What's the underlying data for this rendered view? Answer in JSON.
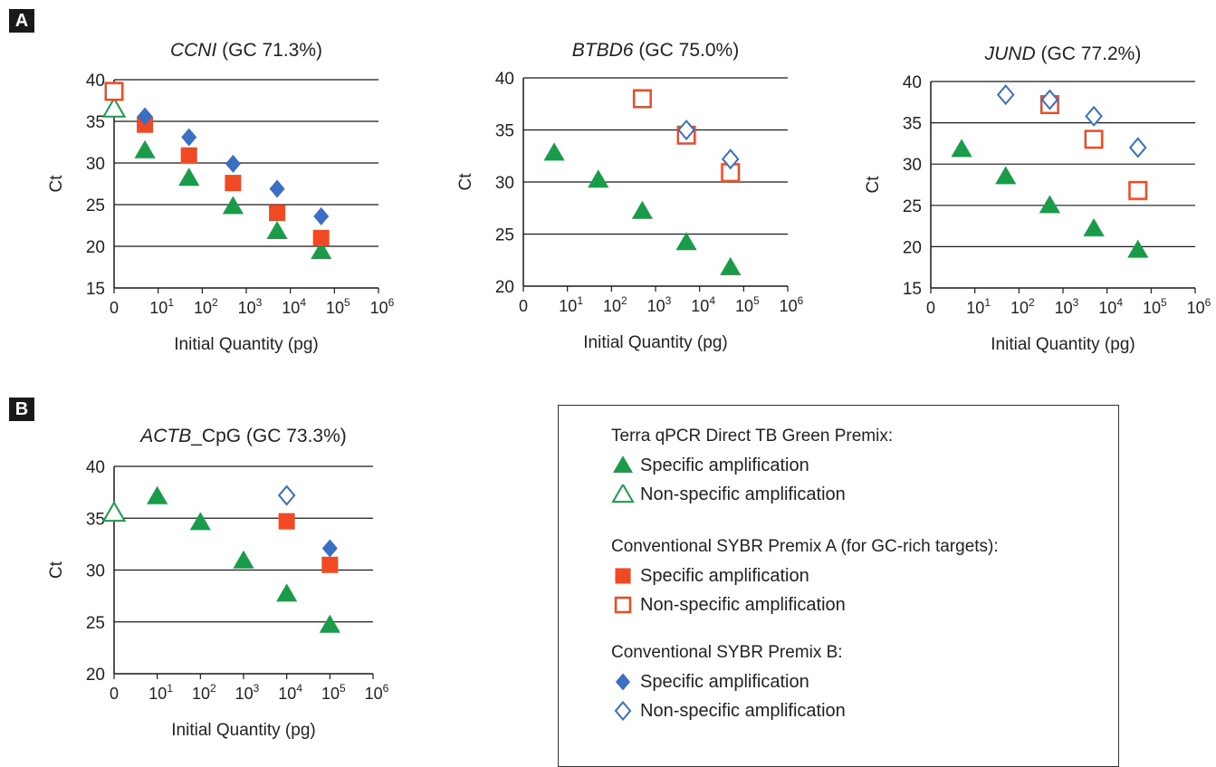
{
  "panel_labels": {
    "a": "A",
    "b": "B"
  },
  "colors": {
    "green": "#1a9b4a",
    "orange": "#ef4a23",
    "blue": "#3a6fc4"
  },
  "legend": {
    "groups": [
      {
        "title": "Terra qPCR Direct TB Green Premix:",
        "items": [
          {
            "marker": "triangle-filled",
            "label": "Specific amplification"
          },
          {
            "marker": "triangle-open",
            "label": "Non-specific amplification"
          }
        ]
      },
      {
        "title": "Conventional SYBR Premix A (for GC-rich targets):",
        "items": [
          {
            "marker": "square-filled",
            "label": "Specific amplification"
          },
          {
            "marker": "square-open",
            "label": "Non-specific amplification"
          }
        ]
      },
      {
        "title": "Conventional SYBR Premix B:",
        "items": [
          {
            "marker": "diamond-filled",
            "label": "Specific amplification"
          },
          {
            "marker": "diamond-open",
            "label": "Non-specific amplification"
          }
        ]
      }
    ]
  },
  "chart_data": [
    {
      "type": "scatter",
      "title_gene": "CCNI",
      "title_rest": " (GC 71.3%)",
      "xlabel": "Initial Quantity (pg)",
      "ylabel": "Ct",
      "ylim": [
        15,
        40
      ],
      "yticks": [
        15,
        20,
        25,
        30,
        35,
        40
      ],
      "xticks": [
        {
          "v": 0,
          "b": "0",
          "e": ""
        },
        {
          "v": 1,
          "b": "10",
          "e": "1"
        },
        {
          "v": 2,
          "b": "10",
          "e": "2"
        },
        {
          "v": 3,
          "b": "10",
          "e": "3"
        },
        {
          "v": 4,
          "b": "10",
          "e": "4"
        },
        {
          "v": 5,
          "b": "10",
          "e": "5"
        },
        {
          "v": 6,
          "b": "10",
          "e": "6"
        }
      ],
      "xlim": [
        0,
        6
      ],
      "grid": "horizontal",
      "series": [
        {
          "marker": "triangle-filled",
          "points": [
            [
              0.7,
              31.5
            ],
            [
              1.7,
              28.2
            ],
            [
              2.7,
              24.8
            ],
            [
              3.7,
              21.8
            ],
            [
              4.7,
              19.4
            ]
          ]
        },
        {
          "marker": "triangle-open",
          "points": [
            [
              0,
              36.5
            ]
          ]
        },
        {
          "marker": "square-filled",
          "points": [
            [
              0.7,
              34.6
            ],
            [
              1.7,
              30.9
            ],
            [
              2.7,
              27.6
            ],
            [
              3.7,
              24.0
            ],
            [
              4.7,
              21.0
            ]
          ]
        },
        {
          "marker": "square-open",
          "points": [
            [
              0,
              38.6
            ]
          ]
        },
        {
          "marker": "diamond-filled",
          "points": [
            [
              0.7,
              35.6
            ],
            [
              1.7,
              33.1
            ],
            [
              2.7,
              29.9
            ],
            [
              3.7,
              26.9
            ],
            [
              4.7,
              23.6
            ]
          ]
        }
      ]
    },
    {
      "type": "scatter",
      "title_gene": "BTBD6",
      "title_rest": " (GC 75.0%)",
      "xlabel": "Initial Quantity (pg)",
      "ylabel": "Ct",
      "ylim": [
        20,
        40
      ],
      "yticks": [
        20,
        25,
        30,
        35,
        40
      ],
      "xticks": [
        {
          "v": 0,
          "b": "0",
          "e": ""
        },
        {
          "v": 1,
          "b": "10",
          "e": "1"
        },
        {
          "v": 2,
          "b": "10",
          "e": "2"
        },
        {
          "v": 3,
          "b": "10",
          "e": "3"
        },
        {
          "v": 4,
          "b": "10",
          "e": "4"
        },
        {
          "v": 5,
          "b": "10",
          "e": "5"
        },
        {
          "v": 6,
          "b": "10",
          "e": "6"
        }
      ],
      "xlim": [
        0,
        6
      ],
      "grid": "horizontal",
      "series": [
        {
          "marker": "triangle-filled",
          "points": [
            [
              0.7,
              32.8
            ],
            [
              1.7,
              30.2
            ],
            [
              2.7,
              27.2
            ],
            [
              3.7,
              24.2
            ],
            [
              4.7,
              21.8
            ]
          ]
        },
        {
          "marker": "square-open",
          "points": [
            [
              2.7,
              38.0
            ],
            [
              3.7,
              34.5
            ],
            [
              4.7,
              30.9
            ]
          ]
        },
        {
          "marker": "diamond-open",
          "points": [
            [
              3.7,
              35.0
            ],
            [
              4.7,
              32.2
            ]
          ]
        }
      ]
    },
    {
      "type": "scatter",
      "title_gene": "JUND",
      "title_rest": " (GC 77.2%)",
      "xlabel": "Initial Quantity (pg)",
      "ylabel": "Ct",
      "ylim": [
        15,
        40
      ],
      "yticks": [
        15,
        20,
        25,
        30,
        35,
        40
      ],
      "xticks": [
        {
          "v": 0,
          "b": "0",
          "e": ""
        },
        {
          "v": 1,
          "b": "10",
          "e": "1"
        },
        {
          "v": 2,
          "b": "10",
          "e": "2"
        },
        {
          "v": 3,
          "b": "10",
          "e": "3"
        },
        {
          "v": 4,
          "b": "10",
          "e": "4"
        },
        {
          "v": 5,
          "b": "10",
          "e": "5"
        },
        {
          "v": 6,
          "b": "10",
          "e": "6"
        }
      ],
      "xlim": [
        0,
        6
      ],
      "grid": "horizontal",
      "series": [
        {
          "marker": "triangle-filled",
          "points": [
            [
              0.7,
              31.8
            ],
            [
              1.7,
              28.5
            ],
            [
              2.7,
              25.0
            ],
            [
              3.7,
              22.2
            ],
            [
              4.7,
              19.6
            ]
          ]
        },
        {
          "marker": "square-open",
          "points": [
            [
              2.7,
              37.2
            ],
            [
              3.7,
              33.0
            ],
            [
              4.7,
              26.8
            ]
          ]
        },
        {
          "marker": "diamond-open",
          "points": [
            [
              1.7,
              38.4
            ],
            [
              2.7,
              37.8
            ],
            [
              3.7,
              35.8
            ],
            [
              4.7,
              32.0
            ]
          ]
        }
      ]
    },
    {
      "type": "scatter",
      "title_gene": "ACTB",
      "title_rest": "_CpG (GC 73.3%)",
      "xlabel": "Initial Quantity (pg)",
      "ylabel": "Ct",
      "ylim": [
        20,
        40
      ],
      "yticks": [
        20,
        25,
        30,
        35,
        40
      ],
      "xticks": [
        {
          "v": 0,
          "b": "0",
          "e": ""
        },
        {
          "v": 1,
          "b": "10",
          "e": "1"
        },
        {
          "v": 2,
          "b": "10",
          "e": "2"
        },
        {
          "v": 3,
          "b": "10",
          "e": "3"
        },
        {
          "v": 4,
          "b": "10",
          "e": "4"
        },
        {
          "v": 5,
          "b": "10",
          "e": "5"
        },
        {
          "v": 6,
          "b": "10",
          "e": "6"
        }
      ],
      "xlim": [
        0,
        6
      ],
      "grid": "horizontal",
      "series": [
        {
          "marker": "triangle-filled",
          "points": [
            [
              1,
              37.1
            ],
            [
              2,
              34.6
            ],
            [
              3,
              30.9
            ],
            [
              4,
              27.7
            ],
            [
              5,
              24.7
            ]
          ]
        },
        {
          "marker": "triangle-open",
          "points": [
            [
              0,
              35.5
            ]
          ]
        },
        {
          "marker": "square-filled",
          "points": [
            [
              4,
              34.7
            ],
            [
              5,
              30.5
            ]
          ]
        },
        {
          "marker": "diamond-filled",
          "points": [
            [
              5,
              32.1
            ]
          ]
        },
        {
          "marker": "diamond-open",
          "points": [
            [
              4,
              37.2
            ]
          ]
        }
      ]
    }
  ]
}
